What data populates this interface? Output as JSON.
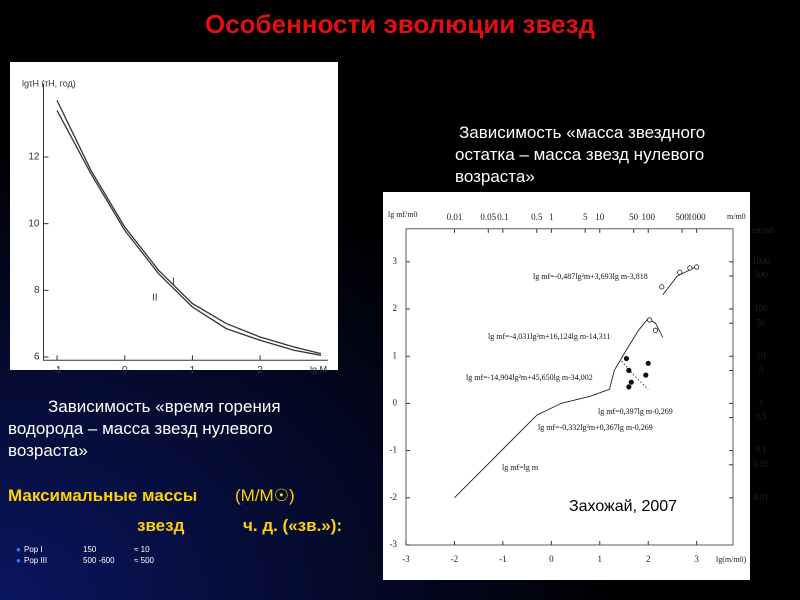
{
  "title": "Особенности эволюции звезд",
  "left_chart": {
    "type": "line",
    "y_label": "lgτH (τH, год)",
    "x_label": "lg M",
    "xlim": [
      -1.2,
      3.0
    ],
    "ylim": [
      5.9,
      14.2
    ],
    "xticks": [
      -1,
      0,
      1,
      2
    ],
    "yticks": [
      6,
      8,
      10,
      12
    ],
    "series": [
      {
        "name": "I",
        "color": "#333333",
        "x": [
          -1,
          -0.5,
          0,
          0.5,
          1,
          1.5,
          2,
          2.5,
          2.9
        ],
        "values": [
          13.7,
          11.6,
          9.9,
          8.6,
          7.6,
          7.0,
          6.6,
          6.3,
          6.1
        ]
      },
      {
        "name": "II",
        "color": "#333333",
        "x": [
          -1,
          -0.5,
          0,
          0.5,
          1,
          1.5,
          2,
          2.5,
          2.9
        ],
        "values": [
          13.4,
          11.5,
          9.8,
          8.5,
          7.5,
          6.85,
          6.5,
          6.2,
          6.05
        ]
      }
    ]
  },
  "left_caption": "Зависимость «время горения водорода – масса звезд нулевого возраста»",
  "right_caption": "Зависимость «масса звездного остатка – масса звезд нулевого возраста»",
  "right_chart": {
    "type": "line",
    "x_label": "lg(m/m0)",
    "y_label": "lg mf/m0",
    "top_label": "m/m0",
    "right_label": "mf/m0",
    "xlim": [
      -3,
      3.75
    ],
    "ylim": [
      -3,
      3.7
    ],
    "xticks": [
      -3,
      -2,
      -1,
      0,
      1,
      2,
      3
    ],
    "yticks": [
      -3,
      -2,
      -1,
      0,
      1,
      2,
      3
    ],
    "top_ticks": [
      0.01,
      0.05,
      0.1,
      0.5,
      1,
      5,
      10,
      50,
      100,
      500,
      1000
    ],
    "right_ticks": [
      1000,
      500,
      100,
      50,
      10,
      5,
      1,
      0.5,
      0.1,
      0.05,
      0.01
    ],
    "series": [
      {
        "style": "line",
        "color": "#222222",
        "x": [
          -2,
          -0.3,
          0.2,
          0.8,
          1.2,
          1.3,
          1.5,
          1.8,
          2.0,
          2.15,
          2.3,
          null,
          2.3,
          2.6,
          3.0
        ],
        "values": [
          -2,
          -0.25,
          0.0,
          0.15,
          0.3,
          0.7,
          1.05,
          1.55,
          1.8,
          1.7,
          1.4,
          null,
          2.3,
          2.7,
          2.9
        ]
      },
      {
        "style": "dotted",
        "color": "#222222",
        "x": [
          1.45,
          1.7,
          2.0
        ],
        "values": [
          0.9,
          0.6,
          0.3
        ]
      },
      {
        "style": "open",
        "color": "#222222",
        "x": [
          2.03,
          2.15,
          2.28,
          2.65,
          2.86,
          3.0
        ],
        "values": [
          1.77,
          1.55,
          2.47,
          2.78,
          2.87,
          2.89
        ]
      },
      {
        "style": "filled",
        "color": "#111111",
        "x": [
          1.55,
          1.6,
          1.65,
          2.0,
          1.95,
          1.6
        ],
        "values": [
          0.95,
          0.7,
          0.45,
          0.85,
          0.6,
          0.35
        ]
      }
    ],
    "annotations": [
      "lg mf=-0,487lg²m+3,693lg m-3,818",
      "lg mf=-4,031lg²m+16,124lg m-14,311",
      "lg mf=-14,904lg²m+45,650lg m-34,002",
      "lg mf=0,397lg m-0,269",
      "lg mf=-0,332lg²m+0,367lg m-0,269",
      "lg mf=lg m"
    ]
  },
  "author": "Захожай, 2007",
  "max_mass": {
    "heading": "Максимальные массы",
    "unit": "(M/M☉)",
    "line2": "звезд",
    "line2b": "ч. д. («зв.»):",
    "rows": [
      [
        "Pop I",
        "150",
        "≈ 10"
      ],
      [
        "Pop III",
        "500 -600",
        "≈ 500"
      ]
    ]
  }
}
